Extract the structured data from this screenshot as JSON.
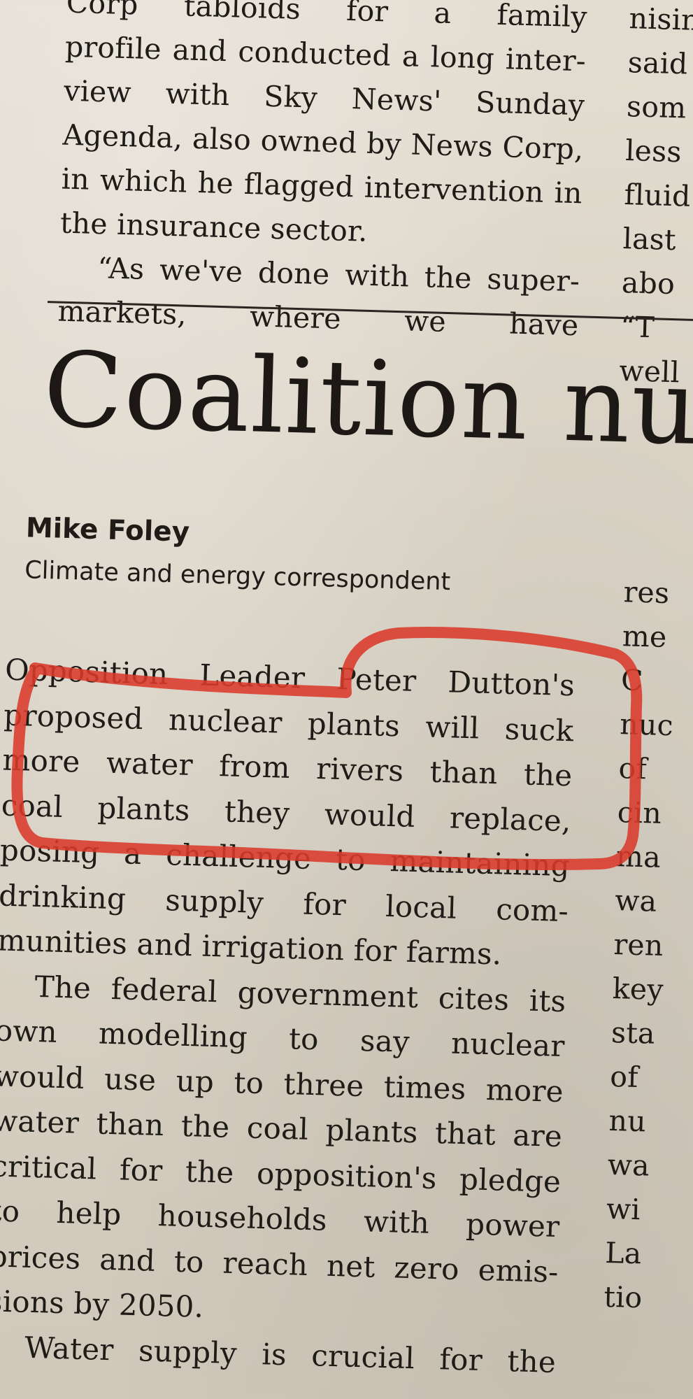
{
  "top_article": {
    "left_column": [
      "Corp tabloids for a family",
      "profile and conducted a long inter-",
      "view with Sky News' Sunday",
      "Agenda, also owned by News Corp,",
      "in which he flagged intervention in",
      "the insurance sector.",
      "“As we've done with the super-",
      "markets, where we have"
    ],
    "right_column": [
      "nisin",
      "said",
      "som",
      "less",
      "fluid",
      "last",
      "abo",
      "“T",
      "well"
    ]
  },
  "headline": "Coalition nu",
  "byline": {
    "author": "Mike Foley",
    "role": "Climate and energy correspondent"
  },
  "article_body": {
    "left_column": [
      "Opposition Leader Peter Dutton's",
      "proposed nuclear plants will suck",
      "more water from rivers than the",
      "coal plants they would replace,",
      "posing a challenge to maintaining",
      "drinking supply for local com-",
      "munities and irrigation for farms.",
      "The federal government cites its",
      "own modelling to say nuclear",
      "would use up to three times more",
      "water than the coal plants that are",
      "critical for the opposition's pledge",
      "to help households with power",
      "prices and to reach net zero emis-",
      "sions by 2050.",
      "Water supply is crucial for the"
    ],
    "right_column": [
      "res",
      "me",
      "C",
      "nuc",
      "of",
      "cin",
      "ma",
      "wa",
      "ren",
      "key",
      "",
      "sta",
      "of",
      "nu",
      "wa",
      "wi",
      "",
      "La",
      "tio"
    ]
  },
  "annotation": {
    "color": "#d93a2b",
    "description_lines": 5
  }
}
